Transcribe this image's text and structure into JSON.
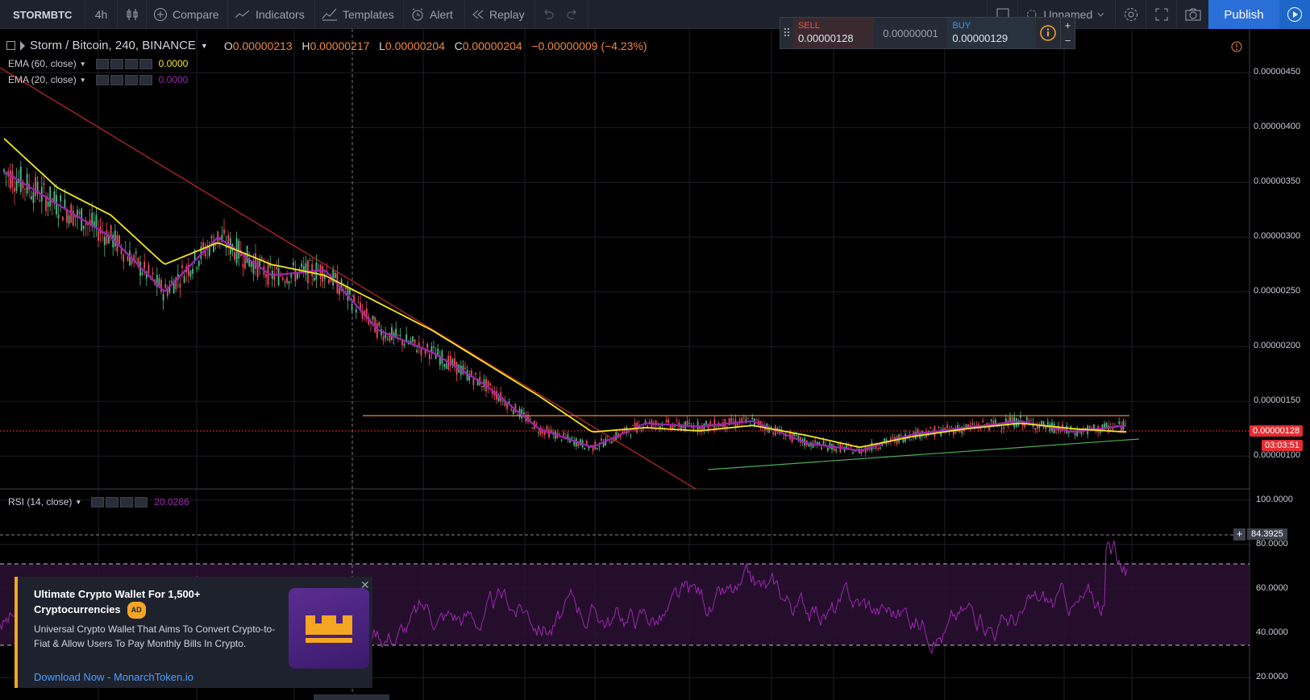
{
  "toolbar": {
    "symbol": "STORMBTC",
    "interval": "4h",
    "compare": "Compare",
    "indicators": "Indicators",
    "templates": "Templates",
    "alert": "Alert",
    "replay": "Replay",
    "layout_name": "Unnamed",
    "publish": "Publish"
  },
  "trade": {
    "sell_label": "SELL",
    "sell_price": "0.00000128",
    "spread": "0.00000001",
    "buy_label": "BUY",
    "buy_price": "0.00000129"
  },
  "legend": {
    "title": "Storm / Bitcoin, 240, BINANCE",
    "open_label": "O",
    "open": "0.00000213",
    "high_label": "H",
    "high": "0.00000217",
    "low_label": "L",
    "low": "0.00000204",
    "close_label": "C",
    "close": "0.00000204",
    "change": "−0.00000009 (−4.23%)"
  },
  "indicators": [
    {
      "label": "EMA (60, close)",
      "value": "0.0000",
      "color": "#f5e61c"
    },
    {
      "label": "EMA (20, close)",
      "value": "0.0000",
      "color": "#9c27b0"
    }
  ],
  "rsi": {
    "label": "RSI (14, close)",
    "value": "20.0286",
    "crosshair_value": "84.3925"
  },
  "price_axis": {
    "ticks": [
      "0.00000450",
      "0.00000400",
      "0.00000350",
      "0.00000300",
      "0.00000250",
      "0.00000200",
      "0.00000150",
      "0.00000100"
    ],
    "last_price": "0.00000128",
    "countdown": "03:03:51"
  },
  "rsi_axis": {
    "ticks": [
      "100.0000",
      "80.0000",
      "60.0000",
      "40.0000",
      "20.0000"
    ]
  },
  "colors": {
    "background": "#000000",
    "ema60": "#f5e61c",
    "ema20": "#9c27b0",
    "up_candle": "#53b987",
    "down_candle": "#eb4d5c",
    "trendline": "#c62828",
    "resistance": "#f0883e",
    "support": "#4caf50",
    "rsi_line": "#9c27b0",
    "accent": "#2a6ed8"
  },
  "ad": {
    "title": "Ultimate Crypto Wallet For 1,500+ Cryptocurrencies",
    "badge": "AD",
    "description": "Universal Crypto Wallet That Aims To Convert Crypto-to-Fiat & Allow Users To Pay Monthly Bills In Crypto.",
    "link": "Download Now - MonarchToken.io",
    "logo_icon": "crown-icon"
  },
  "chart_data": {
    "type": "candlestick",
    "price_axis_range": [
      7e-07,
      4.9e-06
    ],
    "rsi_range": [
      10,
      105
    ],
    "rsi_levels": [
      70,
      30
    ],
    "resistance_level": 1.38e-06,
    "last_price": 1.28e-06,
    "ema60_path": [
      3.9e-06,
      3.45e-06,
      3.2e-06,
      2.75e-06,
      2.95e-06,
      2.75e-06,
      2.65e-06,
      2.4e-06,
      2.15e-06,
      1.85e-06,
      1.55e-06,
      1.22e-06,
      1.26e-06,
      1.23e-06,
      1.28e-06,
      1.19e-06,
      1.08e-06,
      1.18e-06,
      1.25e-06,
      1.3e-06,
      1.25e-06,
      1.22e-06
    ],
    "ema20_path": [
      3.6e-06,
      3.3e-06,
      3e-06,
      2.5e-06,
      3e-06,
      2.65e-06,
      2.7e-06,
      2.15e-06,
      1.95e-06,
      1.65e-06,
      1.25e-06,
      1.08e-06,
      1.3e-06,
      1.27e-06,
      1.32e-06,
      1.12e-06,
      1.05e-06,
      1.2e-06,
      1.26e-06,
      1.32e-06,
      1.22e-06,
      1.28e-06
    ]
  }
}
